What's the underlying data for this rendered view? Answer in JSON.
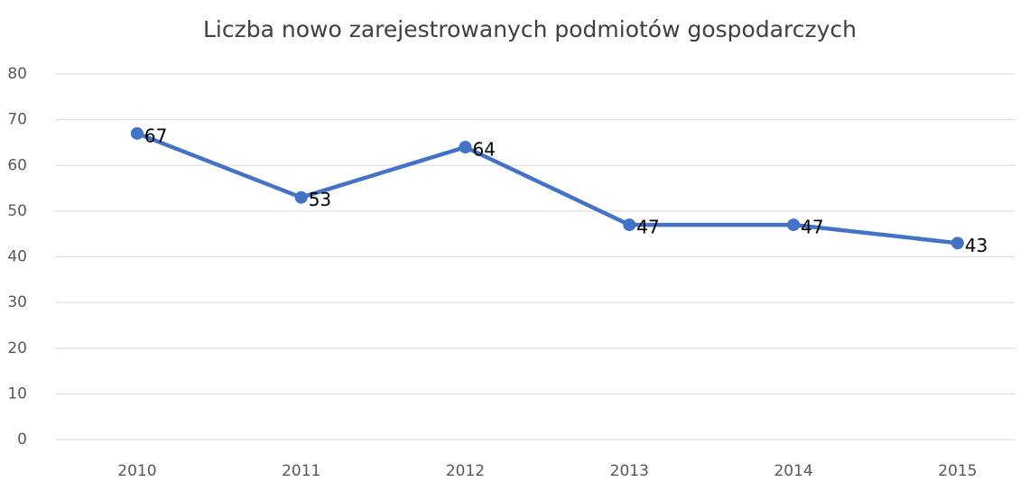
{
  "chart_data": {
    "type": "line",
    "title": "Liczba nowo zarejestrowanych podmiotów gospodarczych",
    "categories": [
      "2010",
      "2011",
      "2012",
      "2013",
      "2014",
      "2015"
    ],
    "series": [
      {
        "name": "Liczba",
        "color": "#4472c4",
        "values": [
          67,
          53,
          64,
          47,
          47,
          43
        ]
      }
    ],
    "ylim": [
      0,
      80
    ],
    "yticks": [
      0,
      10,
      20,
      30,
      40,
      50,
      60,
      70,
      80
    ],
    "grid": true
  }
}
